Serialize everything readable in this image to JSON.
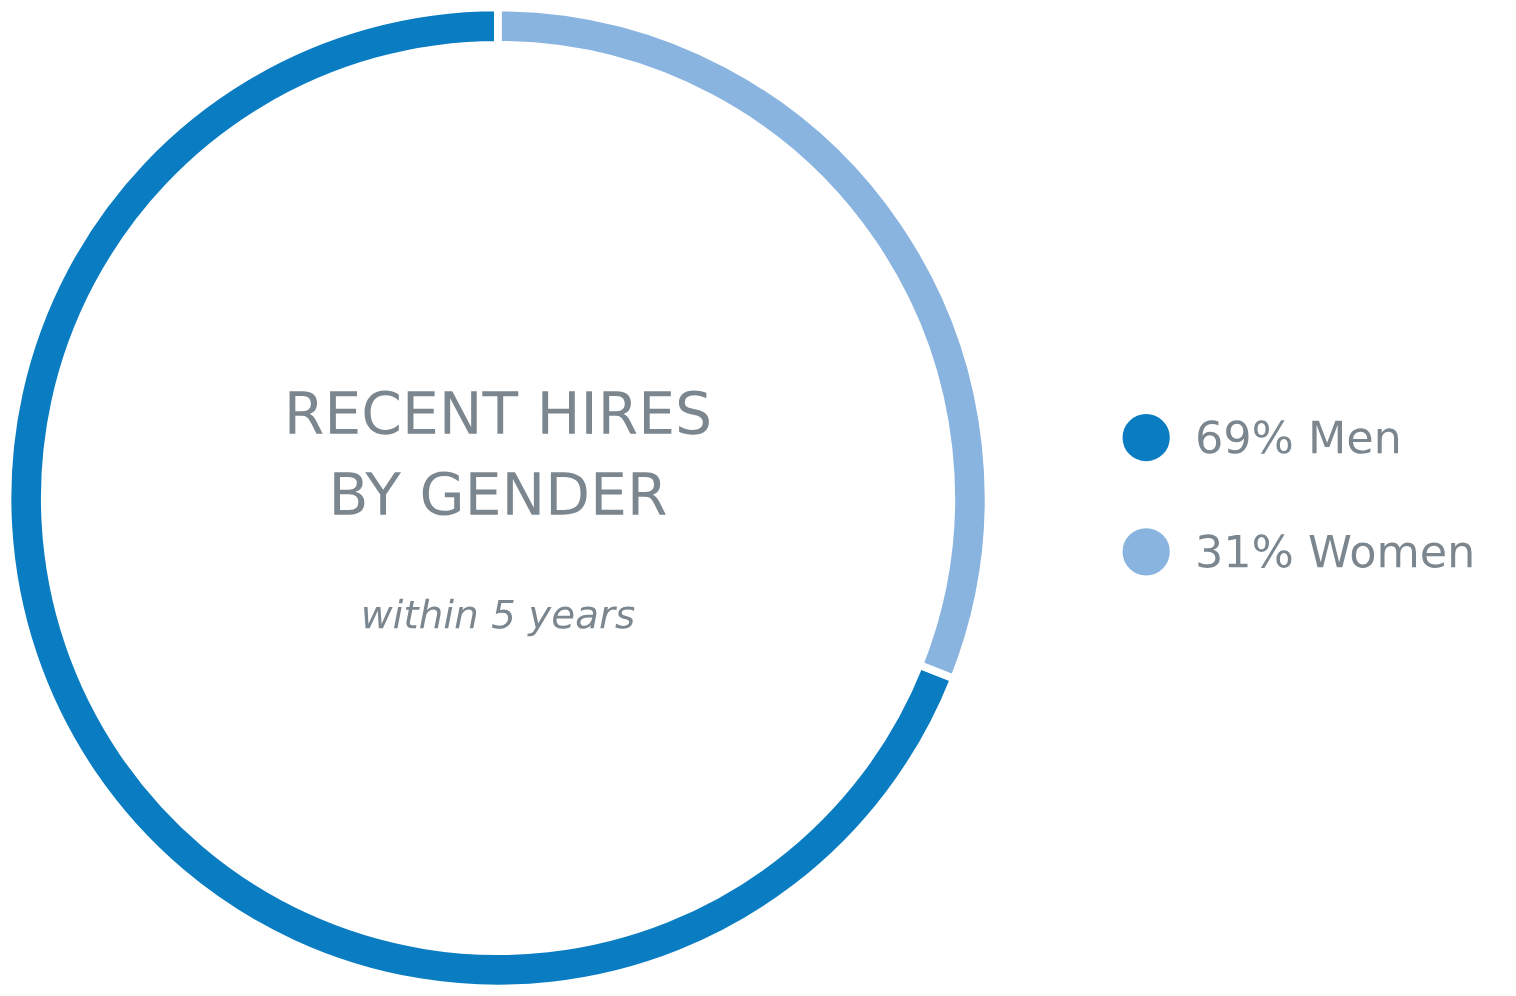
{
  "chart_data": {
    "type": "donut",
    "title": "RECENT HIRES\nBY GENDER",
    "subtitle": "within 5 years",
    "categories": [
      "Men",
      "Women"
    ],
    "values": [
      69,
      31
    ],
    "colors": [
      "#0a7cc1",
      "#8ab4e0"
    ],
    "value_labels": [
      "69%",
      "31%"
    ],
    "legend": "right"
  }
}
